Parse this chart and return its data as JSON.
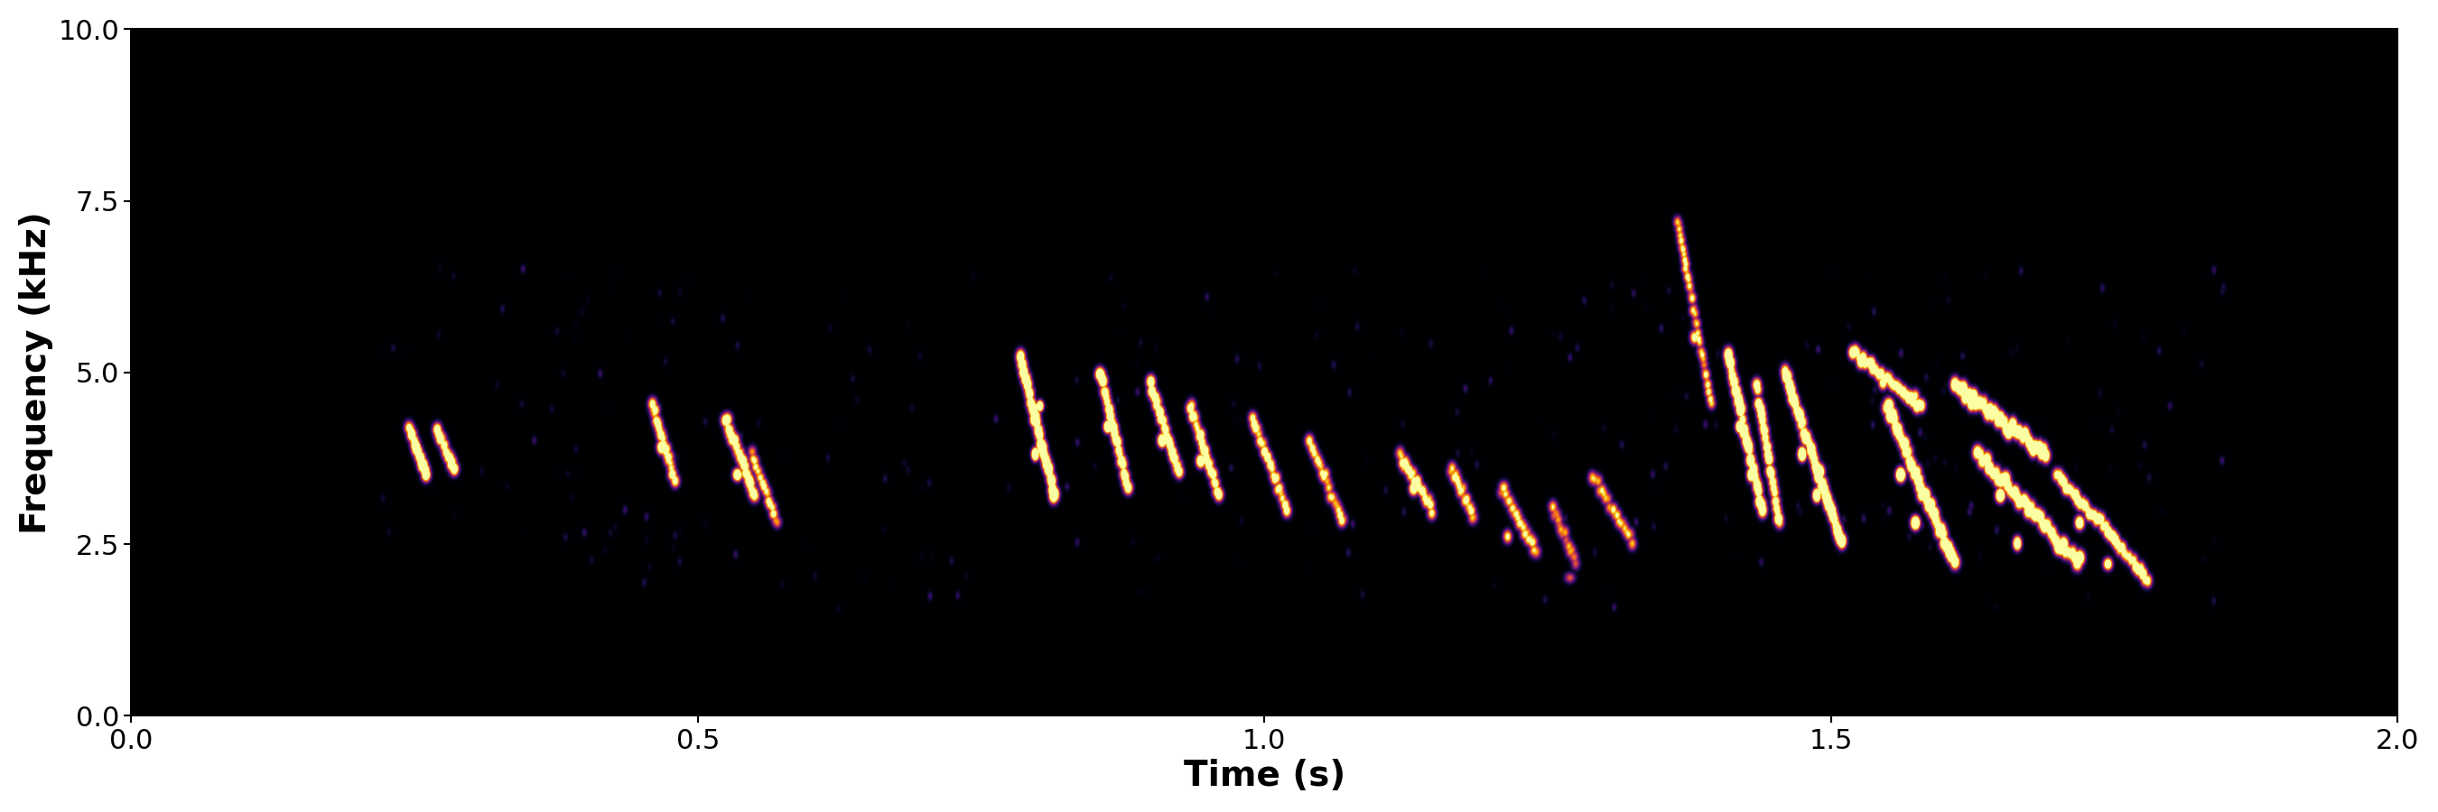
{
  "title": "",
  "xlabel": "Time (s)",
  "ylabel": "Frequency (kHz)",
  "xlim": [
    0.0,
    2.0
  ],
  "ylim": [
    0.0,
    10.0
  ],
  "xticks": [
    0.0,
    0.5,
    1.0,
    1.5,
    2.0
  ],
  "yticks": [
    0.0,
    2.5,
    5.0,
    7.5,
    10.0
  ],
  "background_color": "#000000",
  "colormap": "inferno",
  "axis_label_fontsize": 28,
  "tick_fontsize": 22,
  "xlabel_fontweight": "bold",
  "ylabel_fontweight": "bold",
  "fig_facecolor": "#ffffff",
  "seed": 42,
  "power_scale": 2.5,
  "vmax": 0.35
}
